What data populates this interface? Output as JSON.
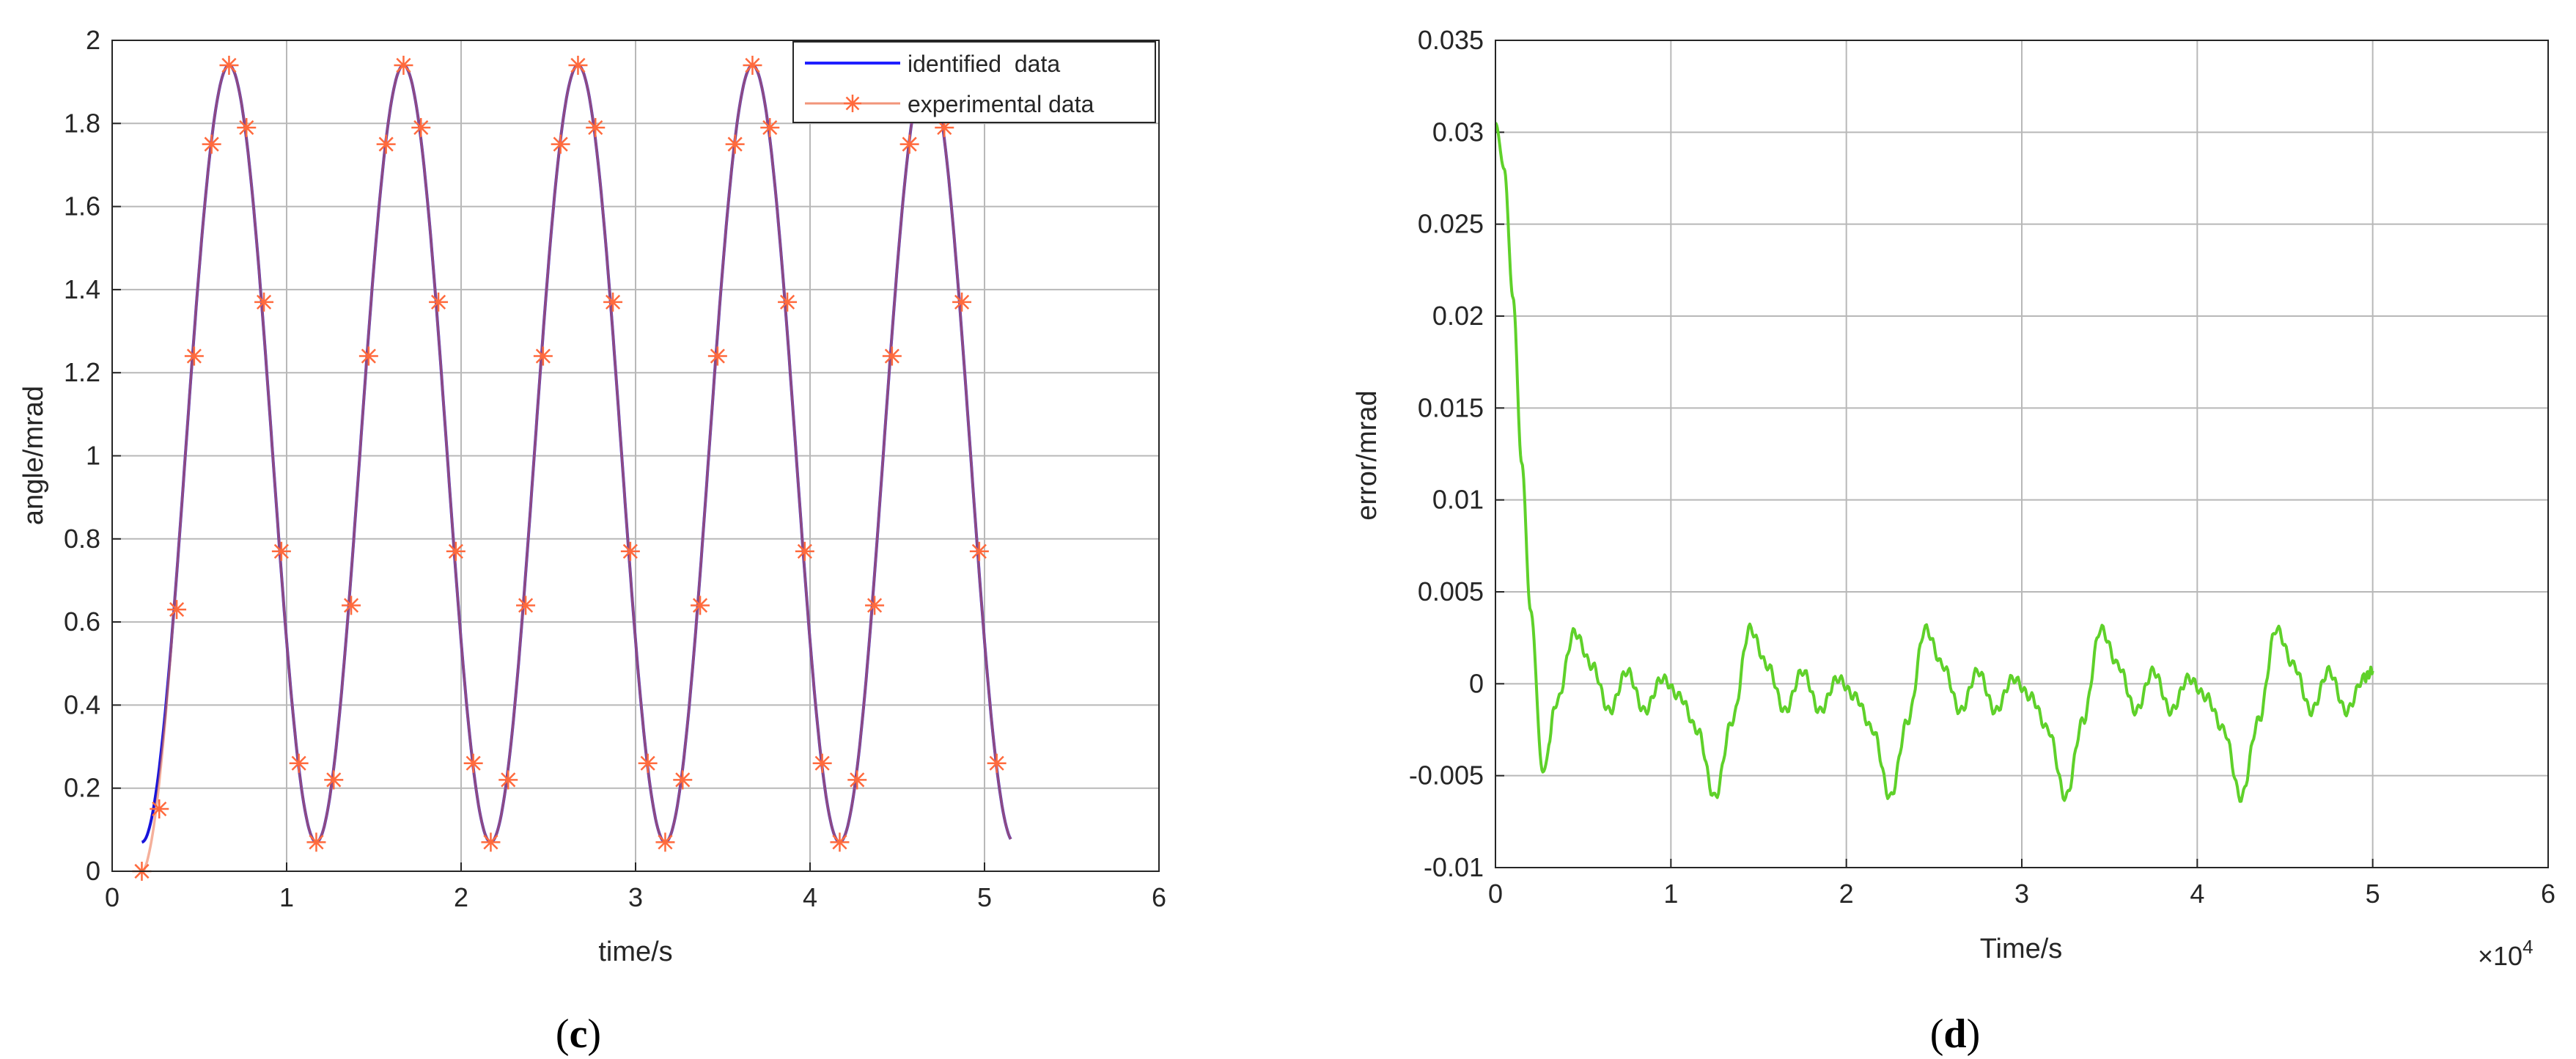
{
  "chart_data": [
    {
      "type": "line",
      "caption_letter": "c",
      "xlabel": "time/s",
      "ylabel": "angle/mrad",
      "xlim": [
        0,
        6
      ],
      "ylim": [
        0,
        2
      ],
      "xticks": [
        0,
        1,
        2,
        3,
        4,
        5,
        6
      ],
      "yticks": [
        0,
        0.2,
        0.4,
        0.6,
        0.8,
        1,
        1.2,
        1.4,
        1.6,
        1.8,
        2
      ],
      "xtick_labels": [
        "0",
        "1",
        "2",
        "3",
        "4",
        "5",
        "6"
      ],
      "ytick_labels": [
        "0",
        "0.2",
        "0.4",
        "0.6",
        "0.8",
        "1",
        "1.2",
        "1.4",
        "1.6",
        "1.8",
        "2"
      ],
      "grid": true,
      "legend_position": "top-right",
      "series": [
        {
          "name": "identified  data",
          "color": "#1f1fff",
          "model": {
            "kind": "sine",
            "mean": 1.005,
            "amplitude": 0.935,
            "period": 1.0,
            "peak_at": 0.67,
            "x_start": 0.17,
            "x_end": 5.15
          }
        },
        {
          "name": "experimental data",
          "color": "#f2957a",
          "marker": "asterisk",
          "marker_color": "#ff6a3d",
          "x": [
            0.17,
            0.27,
            0.37,
            0.47,
            0.57,
            0.67,
            0.77,
            0.87,
            0.97,
            1.07,
            1.17,
            1.27,
            1.37,
            1.47,
            1.57,
            1.67,
            1.77,
            1.87,
            1.97,
            2.07,
            2.17,
            2.27,
            2.37,
            2.47,
            2.57,
            2.67,
            2.77,
            2.87,
            2.97,
            3.07,
            3.17,
            3.27,
            3.37,
            3.47,
            3.57,
            3.67,
            3.77,
            3.87,
            3.97,
            4.07,
            4.17,
            4.27,
            4.37,
            4.47,
            4.57,
            4.67,
            4.77,
            4.87,
            4.97,
            5.07
          ],
          "y": [
            0.0,
            0.15,
            0.63,
            1.24,
            1.75,
            1.94,
            1.79,
            1.37,
            0.77,
            0.26,
            0.07,
            0.22,
            0.64,
            1.24,
            1.75,
            1.94,
            1.79,
            1.37,
            0.77,
            0.26,
            0.07,
            0.22,
            0.64,
            1.24,
            1.75,
            1.94,
            1.79,
            1.37,
            0.77,
            0.26,
            0.07,
            0.22,
            0.64,
            1.24,
            1.75,
            1.94,
            1.79,
            1.37,
            0.77,
            0.26,
            0.07,
            0.22,
            0.64,
            1.24,
            1.75,
            1.94,
            1.79,
            1.37,
            0.77,
            0.26
          ]
        }
      ]
    },
    {
      "type": "line",
      "caption_letter": "d",
      "xlabel": "Time/s",
      "ylabel": "error/mrad",
      "x_multiplier_label": "×10",
      "x_multiplier_exponent": "4",
      "xlim": [
        0,
        6
      ],
      "ylim": [
        -0.01,
        0.035
      ],
      "xticks": [
        0,
        1,
        2,
        3,
        4,
        5,
        6
      ],
      "yticks": [
        -0.01,
        -0.005,
        0,
        0.005,
        0.01,
        0.015,
        0.02,
        0.025,
        0.03,
        0.035
      ],
      "xtick_labels": [
        "0",
        "1",
        "2",
        "3",
        "4",
        "5",
        "6"
      ],
      "ytick_labels": [
        "-0.01",
        "-0.005",
        "0",
        "0.005",
        "0.01",
        "0.015",
        "0.02",
        "0.025",
        "0.03",
        "0.035"
      ],
      "grid": true,
      "series": [
        {
          "color": "#5fd12a",
          "x": [
            0.0,
            0.05,
            0.1,
            0.15,
            0.2,
            0.27,
            0.35,
            0.45,
            0.55,
            0.65,
            0.75,
            0.85,
            0.95,
            1.05,
            1.15,
            1.25,
            1.35,
            1.45,
            1.55,
            1.65,
            1.75,
            1.85,
            1.95,
            2.05,
            2.15,
            2.25,
            2.35,
            2.45,
            2.55,
            2.65,
            2.75,
            2.85,
            2.95,
            3.05,
            3.15,
            3.25,
            3.35,
            3.45,
            3.55,
            3.65,
            3.75,
            3.85,
            3.95,
            4.05,
            4.15,
            4.25,
            4.35,
            4.45,
            4.55,
            4.65,
            4.75,
            4.85,
            4.95,
            5.0
          ],
          "y": [
            0.0305,
            0.028,
            0.021,
            0.012,
            0.004,
            -0.0048,
            -0.001,
            0.0028,
            0.001,
            -0.0015,
            0.0007,
            -0.0015,
            0.0003,
            -0.0007,
            -0.0025,
            -0.0062,
            -0.002,
            0.003,
            0.001,
            -0.0015,
            0.0007,
            -0.0015,
            0.0003,
            -0.0007,
            -0.0025,
            -0.0062,
            -0.002,
            0.003,
            0.001,
            -0.0015,
            0.0007,
            -0.0015,
            0.0003,
            -0.0007,
            -0.0025,
            -0.0062,
            -0.002,
            0.003,
            0.001,
            -0.0015,
            0.0007,
            -0.0015,
            0.0003,
            -0.0007,
            -0.0025,
            -0.0062,
            -0.002,
            0.003,
            0.001,
            -0.0015,
            0.0007,
            -0.0015,
            0.0003,
            0.0007
          ]
        }
      ]
    }
  ]
}
